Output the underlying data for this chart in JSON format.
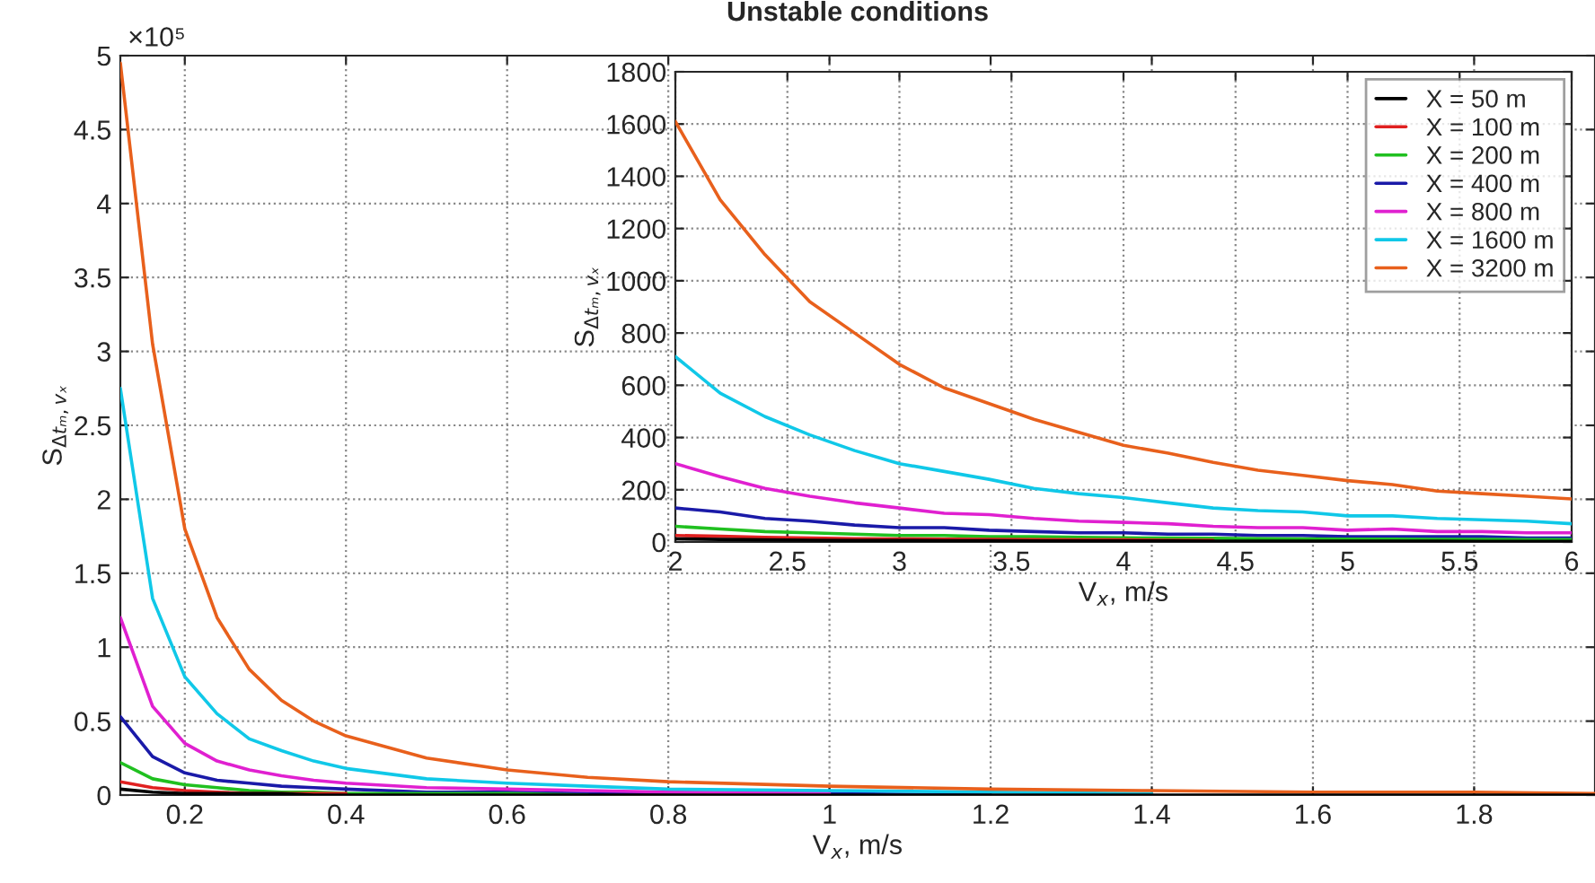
{
  "chart_data": [
    {
      "type": "line",
      "title": "Unstable conditions",
      "xlabel": "V$_{x}$, m/s",
      "ylabel": "S$_{Δtₘ,vₓ}$",
      "x": [
        0.12,
        0.16,
        0.2,
        0.24,
        0.28,
        0.32,
        0.36,
        0.4,
        0.5,
        0.6,
        0.7,
        0.8,
        1.0,
        1.2,
        1.4,
        1.6,
        1.8,
        1.95
      ],
      "series": [
        {
          "color": "#000000",
          "values": [
            0.04,
            0.02,
            0.01,
            0.01,
            0.01,
            0.01,
            0,
            0,
            0,
            0,
            0,
            0,
            0,
            0,
            0,
            0,
            0,
            0
          ]
        },
        {
          "color": "#e02020",
          "values": [
            0.09,
            0.05,
            0.03,
            0.02,
            0.01,
            0.01,
            0.01,
            0.01,
            null,
            null,
            null,
            null,
            null,
            null,
            null,
            null,
            null,
            null
          ]
        },
        {
          "color": "#20c020",
          "values": [
            0.22,
            0.11,
            0.07,
            0.05,
            0.03,
            0.02,
            0.02,
            0.01,
            0.01,
            0.01,
            0,
            null,
            null,
            null,
            null,
            null,
            null,
            null
          ]
        },
        {
          "color": "#1a1aa8",
          "values": [
            0.53,
            0.26,
            0.15,
            0.1,
            0.08,
            0.06,
            0.05,
            0.04,
            0.02,
            0.02,
            0.01,
            0.01,
            0.01,
            0,
            null,
            null,
            null,
            null
          ]
        },
        {
          "color": "#e020d0",
          "values": [
            1.2,
            0.6,
            0.35,
            0.23,
            0.17,
            0.13,
            0.1,
            0.08,
            0.05,
            0.04,
            0.03,
            0.02,
            0.01,
            null,
            null,
            null,
            null,
            null
          ]
        },
        {
          "color": "#10c8e8",
          "values": [
            2.75,
            1.33,
            0.8,
            0.55,
            0.38,
            0.3,
            0.23,
            0.18,
            0.11,
            0.08,
            0.06,
            0.04,
            0.03,
            0.02,
            0.01,
            null,
            null,
            null
          ]
        },
        {
          "color": "#e8601c",
          "values": [
            4.95,
            3.05,
            1.8,
            1.2,
            0.85,
            0.64,
            0.5,
            0.4,
            0.25,
            0.17,
            0.12,
            0.09,
            0.06,
            0.04,
            0.03,
            0.02,
            0.02,
            0.01
          ]
        }
      ],
      "xlim": [
        0.12,
        1.95
      ],
      "xticks": [
        0.2,
        0.4,
        0.6,
        0.8,
        1,
        1.2,
        1.4,
        1.6,
        1.8
      ],
      "ylim": [
        0,
        5
      ],
      "yticks": [
        0,
        0.5,
        1,
        1.5,
        2,
        2.5,
        3,
        3.5,
        4,
        4.5,
        5
      ],
      "annotations": [
        "×10⁵"
      ],
      "grid": true,
      "line_style": "solid",
      "legend": false
    },
    {
      "type": "line",
      "xlabel": "V$_{x}$, m/s",
      "ylabel": "S$_{Δtₘ,vₓ}$",
      "x": [
        2,
        2.2,
        2.4,
        2.6,
        2.8,
        3,
        3.2,
        3.4,
        3.6,
        3.8,
        4,
        4.2,
        4.4,
        4.6,
        4.8,
        5,
        5.2,
        5.4,
        5.6,
        5.8,
        6
      ],
      "series": [
        {
          "name": "X = 50 m",
          "color": "#000000",
          "values": [
            12,
            10,
            8,
            7,
            6,
            6,
            5,
            5,
            4,
            4,
            4,
            4,
            3,
            3,
            3,
            3,
            3,
            3,
            2,
            2,
            2
          ]
        },
        {
          "name": "X = 100 m",
          "color": "#e02020",
          "values": [
            25,
            22,
            18,
            15,
            13,
            12,
            11,
            10,
            9,
            8,
            8,
            7,
            7,
            null,
            null,
            null,
            null,
            null,
            null,
            null,
            null
          ]
        },
        {
          "name": "X = 200 m",
          "color": "#20c020",
          "values": [
            60,
            50,
            40,
            35,
            30,
            25,
            25,
            20,
            20,
            18,
            16,
            15,
            14,
            13,
            12,
            11,
            11,
            10,
            10,
            9,
            9
          ]
        },
        {
          "name": "X = 400 m",
          "color": "#1a1aa8",
          "values": [
            130,
            115,
            90,
            80,
            65,
            55,
            55,
            45,
            40,
            35,
            35,
            30,
            30,
            25,
            25,
            20,
            20,
            20,
            20,
            15,
            15
          ]
        },
        {
          "name": "X = 800 m",
          "color": "#e020d0",
          "values": [
            300,
            250,
            205,
            175,
            150,
            130,
            110,
            105,
            90,
            80,
            75,
            70,
            60,
            55,
            55,
            45,
            50,
            40,
            40,
            35,
            35
          ]
        },
        {
          "name": "X = 1600 m",
          "color": "#10c8e8",
          "values": [
            710,
            570,
            480,
            410,
            350,
            300,
            270,
            240,
            205,
            185,
            170,
            150,
            130,
            120,
            115,
            100,
            100,
            90,
            85,
            80,
            70
          ]
        },
        {
          "name": "X = 3200 m",
          "color": "#e8601c",
          "values": [
            1610,
            1310,
            1100,
            920,
            800,
            680,
            590,
            530,
            470,
            420,
            370,
            340,
            305,
            275,
            255,
            235,
            220,
            195,
            185,
            175,
            165
          ]
        }
      ],
      "xlim": [
        2,
        6
      ],
      "xticks": [
        2,
        2.5,
        3,
        3.5,
        4,
        4.5,
        5,
        5.5,
        6
      ],
      "ylim": [
        0,
        1800
      ],
      "yticks": [
        0,
        200,
        400,
        600,
        800,
        1000,
        1200,
        1400,
        1600,
        1800
      ],
      "grid": true,
      "line_style": "solid",
      "legend": "top right"
    }
  ]
}
